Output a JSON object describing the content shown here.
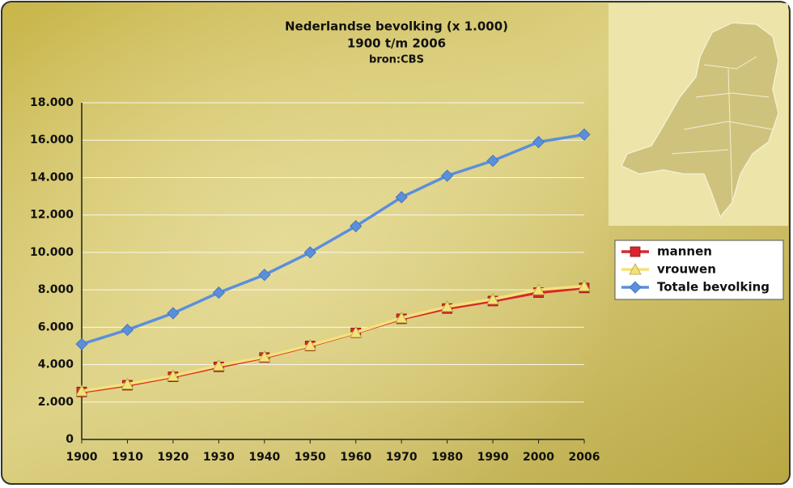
{
  "chart_data": {
    "type": "line",
    "title": "Nederlandse bevolking (x 1.000)",
    "subtitle": "1900 t/m 2006",
    "source": "bron:CBS",
    "categories": [
      "1900",
      "1910",
      "1920",
      "1930",
      "1940",
      "1950",
      "1960",
      "1970",
      "1980",
      "1990",
      "2000",
      "2006"
    ],
    "series": [
      {
        "name": "mannen",
        "color": "#d9262e",
        "marker": "square",
        "values": [
          2540,
          2900,
          3350,
          3880,
          4380,
          5000,
          5700,
          6450,
          7000,
          7400,
          7850,
          8100
        ]
      },
      {
        "name": "vrouwen",
        "color": "#f3e27a",
        "marker": "triangle",
        "values": [
          2590,
          2960,
          3400,
          3950,
          4420,
          5030,
          5720,
          6500,
          7100,
          7500,
          8000,
          8200
        ]
      },
      {
        "name": "Totale bevolking",
        "color": "#5b8fdc",
        "marker": "diamond",
        "values": [
          5100,
          5860,
          6750,
          7850,
          8800,
          10000,
          11400,
          12950,
          14100,
          14900,
          15900,
          16300
        ]
      }
    ],
    "ylim": [
      0,
      18000
    ],
    "yticks": [
      0,
      {
        "value": 2000,
        "label": "2.000"
      },
      {
        "value": 4000,
        "label": "4.000"
      },
      {
        "value": 6000,
        "label": "6.000"
      },
      {
        "value": 8000,
        "label": "8.000"
      },
      {
        "value": 10000,
        "label": "10.000"
      },
      {
        "value": 12000,
        "label": "12.000"
      },
      {
        "value": 14000,
        "label": "14.000"
      },
      {
        "value": 16000,
        "label": "16.000"
      },
      {
        "value": 18000,
        "label": "18.000"
      }
    ],
    "grid": true,
    "legend": "right"
  }
}
